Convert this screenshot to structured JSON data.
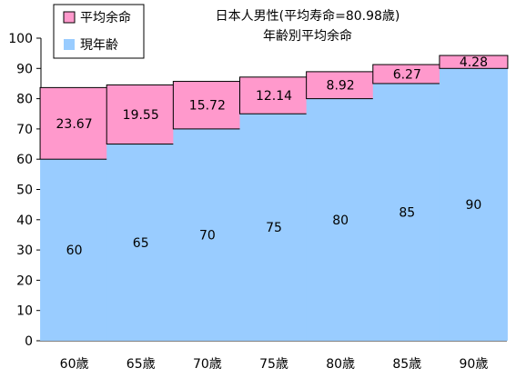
{
  "chart_data": {
    "type": "bar",
    "stacked": true,
    "title": "日本人男性(平均寿命=80.98歳)",
    "subtitle": "年齢別平均余命",
    "categories": [
      "60歳",
      "65歳",
      "70歳",
      "75歳",
      "80歳",
      "85歳",
      "90歳"
    ],
    "series": [
      {
        "name": "現年齢",
        "color": "#99ccff",
        "values": [
          60,
          65,
          70,
          75,
          80,
          85,
          90
        ],
        "labels": [
          "60",
          "65",
          "70",
          "75",
          "80",
          "85",
          "90"
        ]
      },
      {
        "name": "平均余命",
        "color": "#ff99cc",
        "values": [
          23.67,
          19.55,
          15.72,
          12.14,
          8.92,
          6.27,
          4.28
        ],
        "labels": [
          "23.67",
          "19.55",
          "15.72",
          "12.14",
          "8.92",
          "6.27",
          "4.28"
        ]
      }
    ],
    "legend_order": [
      "平均余命",
      "現年齢"
    ],
    "legend_position": "top-left",
    "ylim": [
      0,
      100
    ],
    "yticks": [
      "0",
      "10",
      "20",
      "30",
      "40",
      "50",
      "60",
      "70",
      "80",
      "90",
      "100"
    ],
    "grid": false
  }
}
